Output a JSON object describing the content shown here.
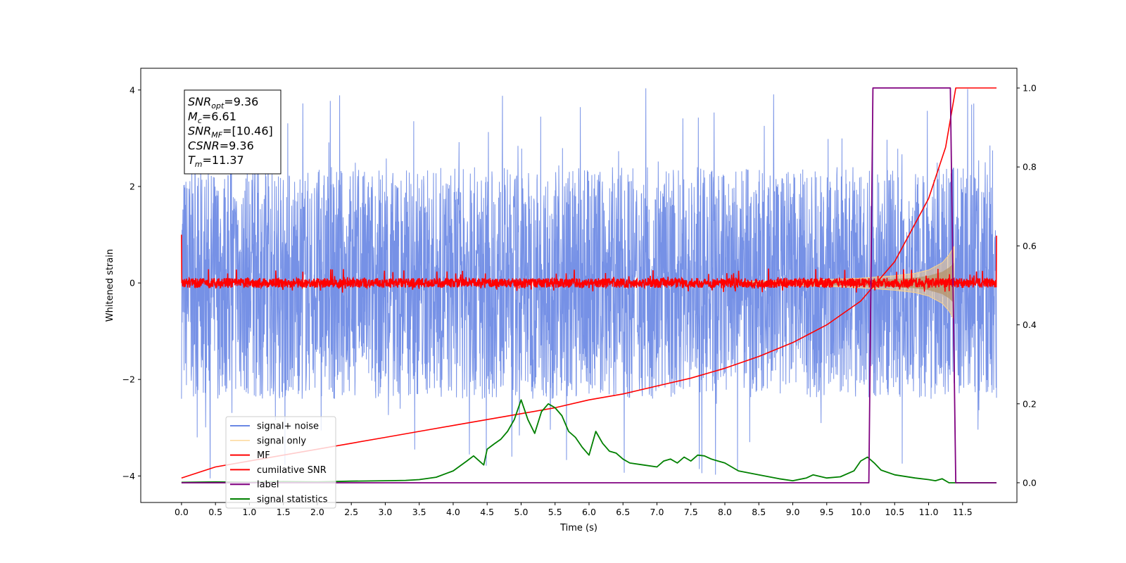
{
  "chart_data": {
    "type": "line",
    "title": "",
    "xlabel": "Time (s)",
    "ylabel": "Whitened strain",
    "xlim": [
      -0.6,
      12.3
    ],
    "ylim": [
      -4.55,
      4.45
    ],
    "y2lim": [
      -0.05,
      1.05
    ],
    "x_ticks": [
      0.0,
      0.5,
      1.0,
      1.5,
      2.0,
      2.5,
      3.0,
      3.5,
      4.0,
      4.5,
      5.0,
      5.5,
      6.0,
      6.5,
      7.0,
      7.5,
      8.0,
      8.5,
      9.0,
      9.5,
      10.0,
      10.5,
      11.0,
      11.5
    ],
    "y_ticks": [
      4,
      2,
      0,
      -2,
      -4
    ],
    "y_tick_labels": [
      "4",
      "2",
      "0",
      "−2",
      "−4"
    ],
    "y2_ticks": [
      1.0,
      0.8,
      0.6,
      0.4,
      0.2,
      0.0
    ],
    "y2_tick_labels": [
      "1.0",
      "0.8",
      "0.6",
      "0.4",
      "0.2",
      "0.0"
    ],
    "legend_placement": "lower-left",
    "info_box": [
      {
        "base": "SNR",
        "sub": "opt",
        "rest": "=9.36"
      },
      {
        "base": "M",
        "sub": "c",
        "rest": "=6.61"
      },
      {
        "base": "SNR",
        "sub": "MF",
        "rest": "=[10.46]"
      },
      {
        "base": "CSNR",
        "sub": "",
        "rest": "=9.36"
      },
      {
        "base": "T",
        "sub": "m",
        "rest": "=11.37"
      }
    ],
    "series": [
      {
        "name": "signal+ noise",
        "color": "#6a88e4",
        "axis": "left",
        "style": "noise",
        "x_range": [
          0,
          12
        ],
        "band": [
          -2.4,
          2.4
        ],
        "peak_range": [
          -4.1,
          4.05
        ]
      },
      {
        "name": "signal only",
        "color": "#fcd28a",
        "axis": "left",
        "style": "chirp-envelope",
        "x_range": [
          8.3,
          11.37
        ],
        "envelope": [
          [
            8.3,
            0.03
          ],
          [
            9.0,
            0.05
          ],
          [
            9.5,
            0.07
          ],
          [
            10.0,
            0.1
          ],
          [
            10.5,
            0.15
          ],
          [
            10.8,
            0.2
          ],
          [
            11.0,
            0.27
          ],
          [
            11.2,
            0.42
          ],
          [
            11.3,
            0.58
          ],
          [
            11.37,
            0.75
          ]
        ]
      },
      {
        "name": "MF",
        "color": "#ff0000",
        "axis": "left",
        "style": "noise",
        "x_range": [
          0,
          12
        ],
        "band": [
          -0.1,
          0.1
        ],
        "peak_range": [
          -0.2,
          0.3
        ],
        "edge_values": [
          1.0,
          0.98
        ]
      },
      {
        "name": "cumilative SNR",
        "color": "#ff0000",
        "axis": "right",
        "x": [
          0.0,
          0.5,
          1.0,
          1.5,
          2.0,
          2.5,
          3.0,
          3.5,
          4.0,
          4.5,
          5.0,
          5.5,
          6.0,
          6.5,
          7.0,
          7.5,
          8.0,
          8.5,
          9.0,
          9.5,
          10.0,
          10.5,
          11.0,
          11.25,
          11.4,
          11.6,
          11.8,
          12.0
        ],
        "y": [
          0.012,
          0.04,
          0.055,
          0.07,
          0.085,
          0.1,
          0.115,
          0.13,
          0.145,
          0.16,
          0.175,
          0.19,
          0.21,
          0.225,
          0.245,
          0.265,
          0.29,
          0.32,
          0.355,
          0.4,
          0.46,
          0.56,
          0.72,
          0.85,
          1.0,
          1.0,
          1.0,
          1.0
        ]
      },
      {
        "name": "label",
        "color": "#800080",
        "axis": "right",
        "x": [
          0.0,
          10.12,
          10.18,
          11.32,
          11.4,
          12.0
        ],
        "y": [
          0.0,
          0.0,
          1.0,
          1.0,
          0.0,
          0.0
        ]
      },
      {
        "name": "signal statistics",
        "color": "#008000",
        "axis": "right",
        "x": [
          0.0,
          0.5,
          1.0,
          1.5,
          2.0,
          2.5,
          3.0,
          3.3,
          3.5,
          3.75,
          4.0,
          4.2,
          4.3,
          4.45,
          4.5,
          4.6,
          4.7,
          4.8,
          4.9,
          5.0,
          5.1,
          5.2,
          5.3,
          5.4,
          5.5,
          5.6,
          5.7,
          5.8,
          5.9,
          6.0,
          6.1,
          6.2,
          6.3,
          6.4,
          6.5,
          6.6,
          6.8,
          7.0,
          7.1,
          7.2,
          7.3,
          7.4,
          7.5,
          7.6,
          7.7,
          7.8,
          7.9,
          8.0,
          8.2,
          8.5,
          8.8,
          9.0,
          9.2,
          9.3,
          9.5,
          9.7,
          9.9,
          10.0,
          10.1,
          10.2,
          10.3,
          10.5,
          10.8,
          11.0,
          11.1,
          11.2,
          11.3,
          11.5,
          12.0
        ],
        "y": [
          0.001,
          0.002,
          0.001,
          0.003,
          0.002,
          0.004,
          0.005,
          0.006,
          0.008,
          0.014,
          0.03,
          0.055,
          0.068,
          0.045,
          0.085,
          0.098,
          0.11,
          0.13,
          0.16,
          0.21,
          0.16,
          0.125,
          0.18,
          0.2,
          0.19,
          0.17,
          0.13,
          0.115,
          0.09,
          0.07,
          0.13,
          0.1,
          0.08,
          0.075,
          0.06,
          0.05,
          0.045,
          0.04,
          0.055,
          0.06,
          0.05,
          0.065,
          0.055,
          0.07,
          0.068,
          0.06,
          0.055,
          0.05,
          0.03,
          0.02,
          0.01,
          0.005,
          0.012,
          0.02,
          0.012,
          0.015,
          0.03,
          0.055,
          0.065,
          0.05,
          0.032,
          0.02,
          0.012,
          0.008,
          0.005,
          0.01,
          0.0,
          0.0,
          0.0
        ]
      }
    ]
  }
}
